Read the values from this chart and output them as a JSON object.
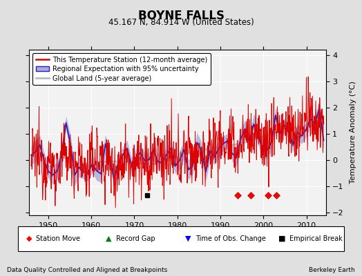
{
  "title": "BOYNE FALLS",
  "subtitle": "45.167 N, 84.914 W (United States)",
  "ylabel": "Temperature Anomaly (°C)",
  "xlabel_left": "Data Quality Controlled and Aligned at Breakpoints",
  "xlabel_right": "Berkeley Earth",
  "xlim": [
    1945.5,
    2014.5
  ],
  "ylim": [
    -2.1,
    4.2
  ],
  "yticks": [
    -2,
    -1,
    0,
    1,
    2,
    3,
    4
  ],
  "xticks": [
    1950,
    1960,
    1970,
    1980,
    1990,
    2000,
    2010
  ],
  "bg_color": "#e0e0e0",
  "plot_bg_color": "#f2f2f2",
  "grid_color": "#ffffff",
  "station_move_years": [
    1994,
    1997,
    2001,
    2003
  ],
  "empirical_break_years": [
    1973
  ],
  "time_obs_change_years": [],
  "legend_labels": [
    "This Temperature Station (12-month average)",
    "Regional Expectation with 95% uncertainty",
    "Global Land (5-year average)"
  ],
  "red_line_color": "#dd0000",
  "blue_line_color": "#2222bb",
  "blue_fill_color": "#aaaadd",
  "gray_line_color": "#bbbbbb",
  "marker_bottom_y": -1.35,
  "seed": 12345
}
